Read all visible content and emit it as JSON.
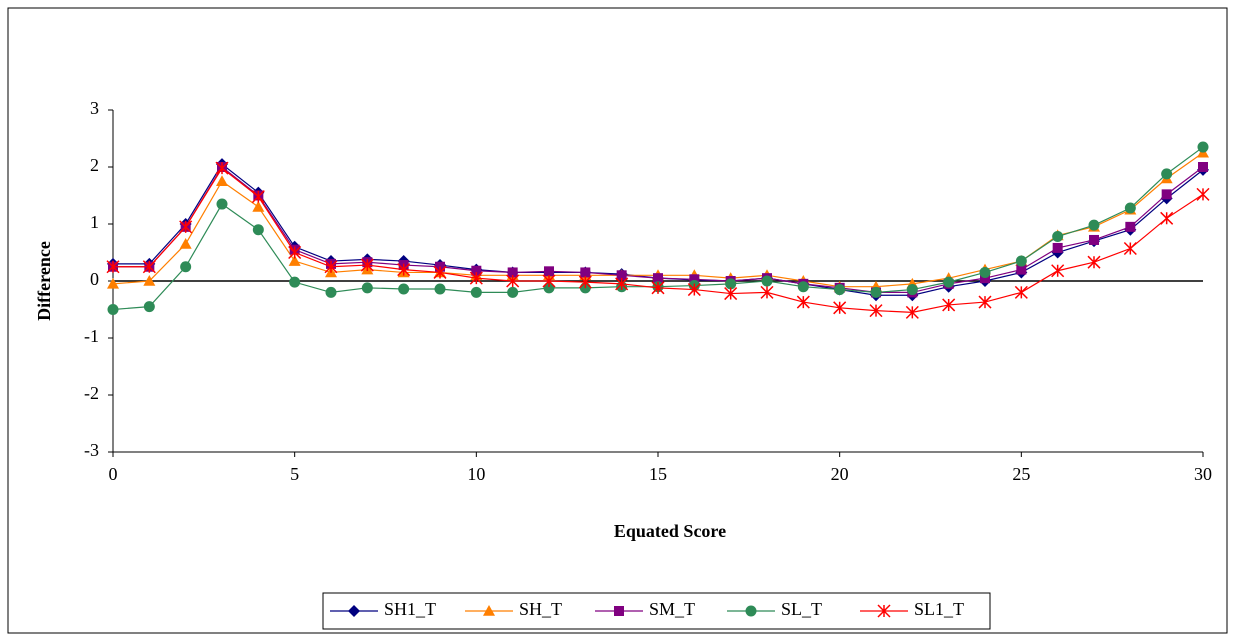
{
  "chart_data": {
    "type": "line",
    "x": [
      0,
      1,
      2,
      3,
      4,
      5,
      6,
      7,
      8,
      9,
      10,
      11,
      12,
      13,
      14,
      15,
      16,
      17,
      18,
      19,
      20,
      21,
      22,
      23,
      24,
      25,
      26,
      27,
      28,
      29,
      30
    ],
    "series": [
      {
        "name": "SH1_T",
        "color": "#000080",
        "marker": "diamond",
        "values": [
          0.3,
          0.3,
          1.0,
          2.05,
          1.55,
          0.6,
          0.35,
          0.38,
          0.35,
          0.28,
          0.2,
          0.15,
          0.15,
          0.15,
          0.12,
          0.05,
          0.02,
          0.0,
          0.05,
          -0.05,
          -0.15,
          -0.25,
          -0.25,
          -0.1,
          0.0,
          0.15,
          0.5,
          0.7,
          0.9,
          1.45,
          1.95
        ]
      },
      {
        "name": "SH_T",
        "color": "#ff7f00",
        "marker": "triangle",
        "values": [
          -0.05,
          0.0,
          0.65,
          1.75,
          1.3,
          0.35,
          0.15,
          0.2,
          0.15,
          0.15,
          0.1,
          0.1,
          0.1,
          0.1,
          0.1,
          0.1,
          0.1,
          0.05,
          0.1,
          0.0,
          -0.1,
          -0.1,
          -0.05,
          0.05,
          0.2,
          0.35,
          0.8,
          0.95,
          1.25,
          1.8,
          2.25
        ]
      },
      {
        "name": "SM_T",
        "color": "#800080",
        "marker": "square",
        "values": [
          0.25,
          0.25,
          0.95,
          2.0,
          1.5,
          0.55,
          0.3,
          0.33,
          0.28,
          0.25,
          0.18,
          0.15,
          0.17,
          0.15,
          0.1,
          0.05,
          0.03,
          0.0,
          0.05,
          -0.05,
          -0.12,
          -0.2,
          -0.2,
          -0.05,
          0.05,
          0.2,
          0.58,
          0.72,
          0.95,
          1.52,
          2.0
        ]
      },
      {
        "name": "SL_T",
        "color": "#2e8b57",
        "marker": "circle",
        "values": [
          -0.5,
          -0.45,
          0.25,
          1.35,
          0.9,
          -0.02,
          -0.2,
          -0.12,
          -0.14,
          -0.14,
          -0.2,
          -0.2,
          -0.12,
          -0.12,
          -0.1,
          -0.1,
          -0.08,
          -0.05,
          0.0,
          -0.1,
          -0.15,
          -0.2,
          -0.15,
          -0.02,
          0.15,
          0.35,
          0.78,
          0.98,
          1.28,
          1.88,
          2.35
        ]
      },
      {
        "name": "SL1_T",
        "color": "#ff0000",
        "marker": "star",
        "values": [
          0.25,
          0.25,
          0.95,
          1.98,
          1.48,
          0.5,
          0.25,
          0.28,
          0.2,
          0.15,
          0.05,
          0.0,
          0.0,
          -0.02,
          -0.05,
          -0.12,
          -0.15,
          -0.22,
          -0.2,
          -0.37,
          -0.47,
          -0.52,
          -0.55,
          -0.42,
          -0.37,
          -0.2,
          0.18,
          0.33,
          0.57,
          1.1,
          1.52
        ]
      }
    ],
    "x_label": "Equated Score",
    "y_label": "Difference",
    "xlim": [
      0,
      30
    ],
    "xticks": [
      0,
      5,
      10,
      15,
      20,
      25,
      30
    ],
    "ylim": [
      -3,
      3
    ],
    "yticks": [
      -3,
      -2,
      -1,
      0,
      1,
      2,
      3
    ],
    "legend": "bottom"
  }
}
